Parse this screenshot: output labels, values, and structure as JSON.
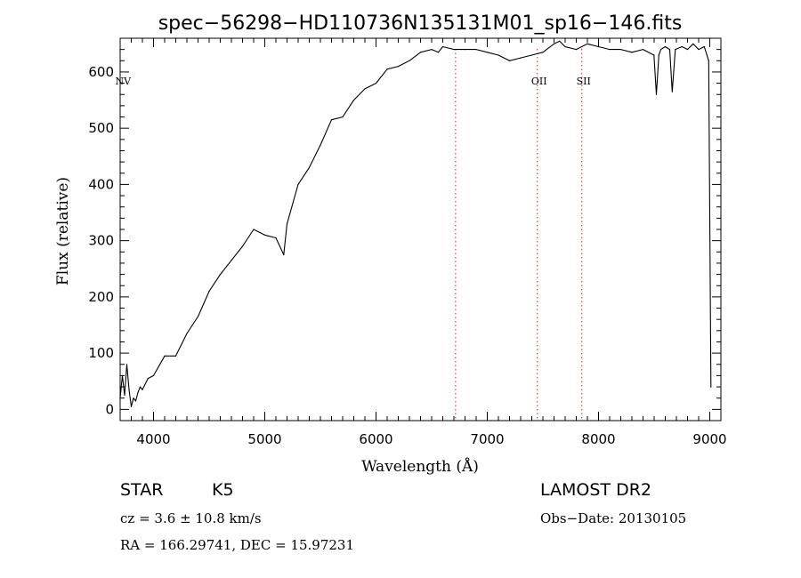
{
  "chart_data": {
    "type": "line",
    "title": "spec−56298−HD110736N135131M01_sp16−146.fits",
    "xlabel": "Wavelength (Å)",
    "ylabel": "Flux (relative)",
    "xlim": [
      3700,
      9100
    ],
    "ylim": [
      -20,
      660
    ],
    "xticks": [
      4000,
      5000,
      6000,
      7000,
      8000,
      9000
    ],
    "yticks": [
      0,
      100,
      200,
      300,
      400,
      500,
      600
    ],
    "grid": false,
    "line_color": "#000000",
    "marker_color": "#d62020",
    "line_markers": [
      {
        "label": "NV",
        "x": 3710
      },
      {
        "label": "",
        "x": 6715
      },
      {
        "label": "OII",
        "x": 7450
      },
      {
        "label": "SII",
        "x": 7850
      }
    ],
    "series": [
      {
        "x": [
          3700,
          3720,
          3740,
          3760,
          3780,
          3800,
          3820,
          3840,
          3860,
          3880,
          3900,
          3950,
          4000,
          4100,
          4200,
          4300,
          4400,
          4500,
          4600,
          4700,
          4800,
          4900,
          5000,
          5100,
          5170,
          5200,
          5300,
          5400,
          5500,
          5600,
          5700,
          5800,
          5900,
          6000,
          6100,
          6200,
          6300,
          6400,
          6500,
          6560,
          6600,
          6700,
          6800,
          6900,
          7000,
          7100,
          7200,
          7300,
          7400,
          7500,
          7600,
          7650,
          7700,
          7800,
          7900,
          8000,
          8100,
          8200,
          8300,
          8400,
          8498,
          8520,
          8542,
          8560,
          8600,
          8640,
          8662,
          8690,
          8750,
          8800,
          8850,
          8900,
          8950,
          8990,
          9010
        ],
        "y": [
          20,
          60,
          25,
          80,
          35,
          5,
          20,
          15,
          30,
          40,
          35,
          55,
          60,
          95,
          95,
          135,
          165,
          210,
          240,
          265,
          290,
          320,
          310,
          305,
          275,
          330,
          400,
          430,
          470,
          515,
          520,
          550,
          570,
          580,
          605,
          610,
          620,
          635,
          640,
          635,
          645,
          640,
          640,
          640,
          635,
          630,
          620,
          625,
          630,
          635,
          650,
          655,
          645,
          640,
          650,
          645,
          640,
          640,
          635,
          640,
          630,
          560,
          630,
          640,
          645,
          640,
          565,
          640,
          645,
          640,
          650,
          640,
          645,
          620,
          40
        ]
      }
    ]
  },
  "info": {
    "object_type": "STAR",
    "spectral_class": "K5",
    "survey": "LAMOST DR2",
    "cz": "cz = 3.6 ± 10.8 km/s",
    "obs_date": "Obs−Date: 20130105",
    "coords": "RA = 166.29741, DEC =  15.97231"
  }
}
